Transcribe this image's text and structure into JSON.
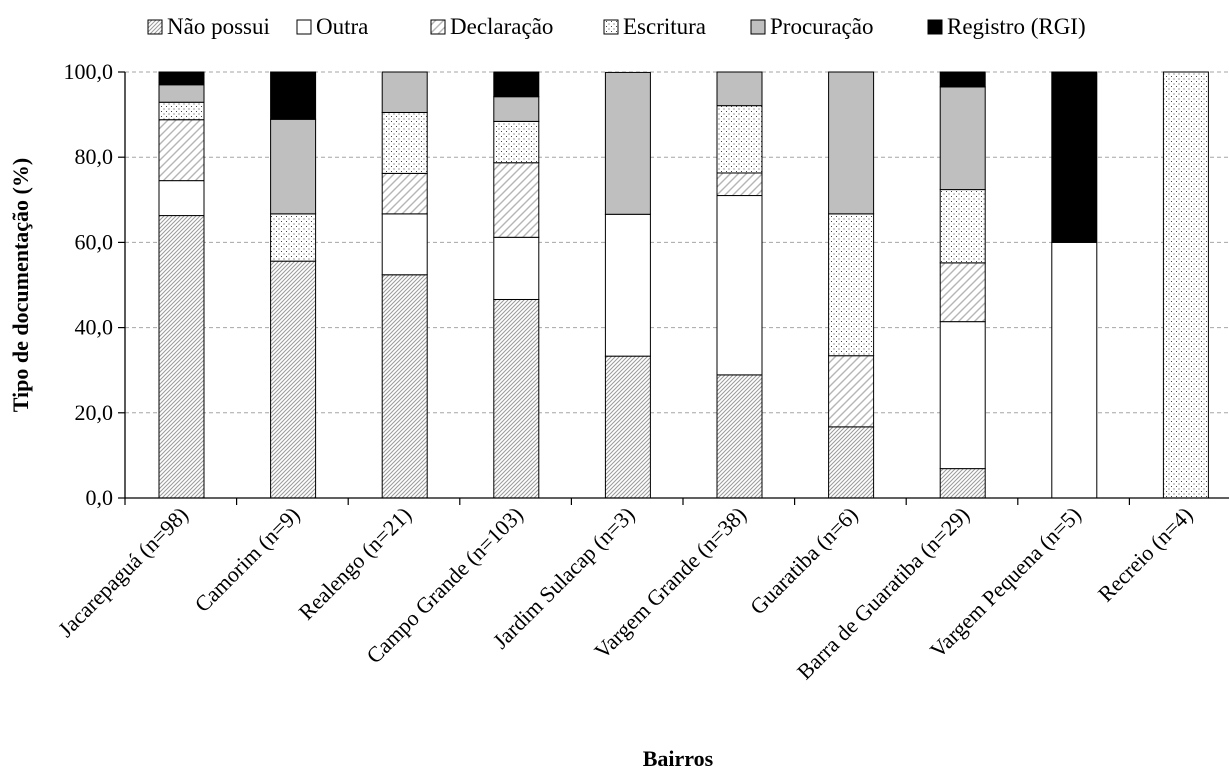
{
  "chart_data": {
    "type": "bar",
    "stacked": true,
    "xlabel": "Bairros",
    "ylabel": "Tipo de documentação (%)",
    "ylim": [
      0,
      100
    ],
    "ytick_values": [
      0,
      20,
      40,
      60,
      80,
      100
    ],
    "ytick_labels": [
      "0,0",
      "20,0",
      "40,0",
      "60,0",
      "80,0",
      "100,0"
    ],
    "grid": true,
    "legend_position": "top",
    "categories": [
      "Jacarepaguá (n=98)",
      "Camorim (n=9)",
      "Realengo (n=21)",
      "Campo Grande (n=103)",
      "Jardim Sulacap (n=3)",
      "Vargem Grande (n=38)",
      "Guaratiba (n=6)",
      "Barra de Guaratiba (n=29)",
      "Vargem Pequena (n=5)",
      "Recreio (n=4)"
    ],
    "series": [
      {
        "name": "Não possui",
        "pattern": "hatch-diagonal-dense",
        "color": "#9a9a9a",
        "values": [
          66.3,
          55.6,
          52.4,
          46.6,
          33.3,
          28.9,
          16.7,
          6.9,
          0,
          0
        ]
      },
      {
        "name": "Outra",
        "pattern": "solid-white",
        "color": "#ffffff",
        "values": [
          8.2,
          0,
          14.3,
          14.6,
          33.3,
          42.1,
          0,
          34.5,
          60.0,
          0
        ]
      },
      {
        "name": "Declaração",
        "pattern": "hatch-diagonal-light",
        "color": "#b5b5b5",
        "values": [
          14.3,
          0,
          9.5,
          17.5,
          0,
          5.3,
          16.7,
          13.8,
          0,
          0
        ]
      },
      {
        "name": "Escritura",
        "pattern": "dots",
        "color": "#444444",
        "values": [
          4.1,
          11.1,
          14.3,
          9.7,
          0,
          15.8,
          33.3,
          17.2,
          0,
          100
        ]
      },
      {
        "name": "Procuração",
        "pattern": "solid-gray",
        "color": "#bfbfbf",
        "values": [
          4.1,
          22.2,
          9.5,
          5.8,
          33.3,
          7.9,
          33.3,
          24.1,
          0,
          0
        ]
      },
      {
        "name": "Registro (RGI)",
        "pattern": "solid-black",
        "color": "#000000",
        "values": [
          3.0,
          11.1,
          0,
          5.8,
          0,
          0,
          0,
          3.5,
          40.0,
          0
        ]
      }
    ]
  }
}
